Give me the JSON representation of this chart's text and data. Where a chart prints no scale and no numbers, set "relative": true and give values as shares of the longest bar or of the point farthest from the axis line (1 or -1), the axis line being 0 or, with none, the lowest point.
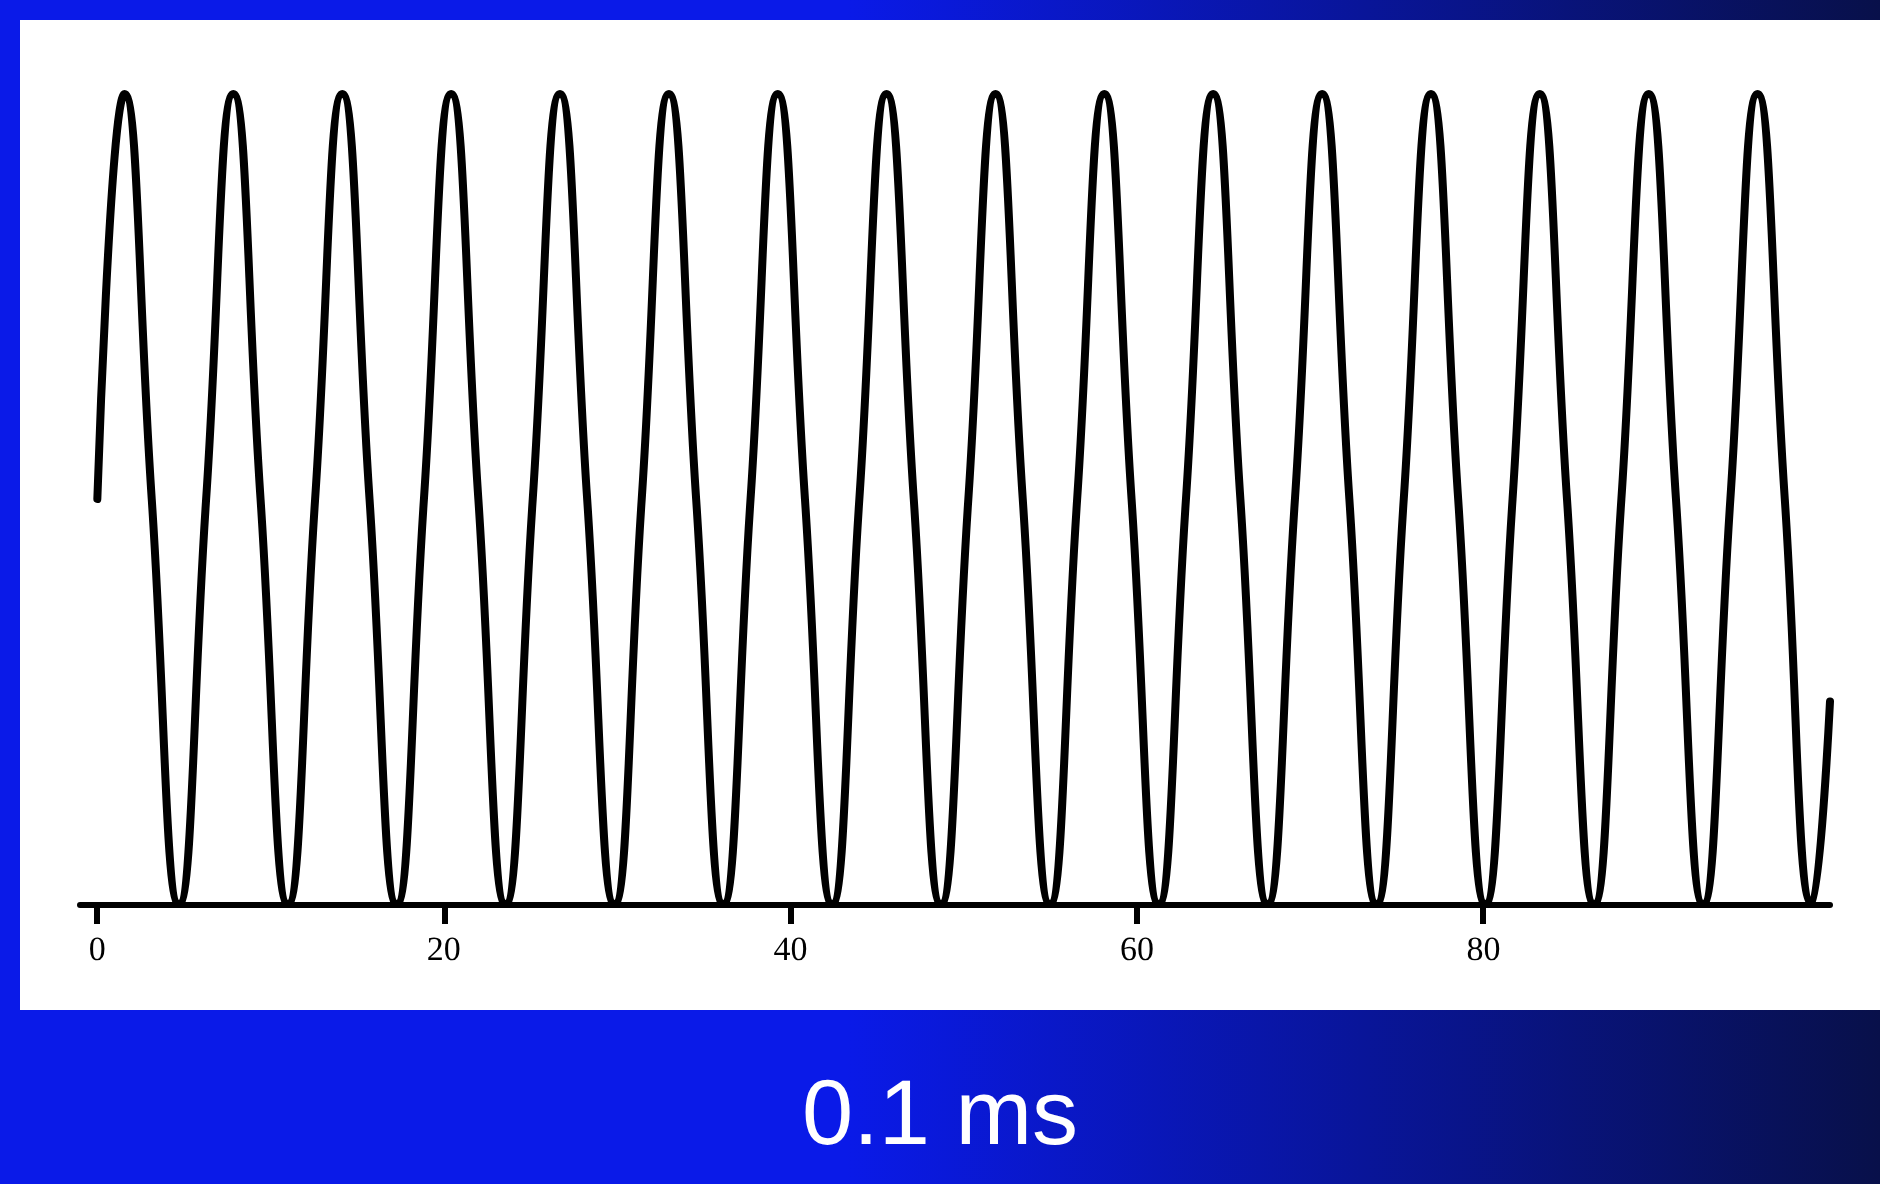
{
  "chart_data": {
    "type": "line",
    "title": "0.1 ms",
    "relative": true,
    "color": "#000000",
    "marker": "none",
    "line_style": "solid",
    "grid": false,
    "tick_labels": "x",
    "xlim": [
      -1,
      100
    ],
    "xticks": [
      0,
      20,
      40,
      60,
      80
    ],
    "x": [
      0,
      1.57,
      3.14,
      4.71,
      6.28,
      7.85,
      9.42,
      11.0,
      12.57,
      14.14,
      15.71,
      17.28,
      18.85,
      20.42,
      21.99,
      23.56,
      25.13,
      26.7,
      28.27,
      29.85,
      31.42,
      32.99,
      34.56,
      36.13,
      37.7,
      39.27,
      40.84,
      42.41,
      43.98,
      45.55,
      47.12,
      48.69,
      50.27,
      51.84,
      53.41,
      54.98,
      56.55,
      58.12,
      59.69,
      61.26,
      62.83,
      64.4,
      65.97,
      67.54,
      69.12,
      70.69,
      72.26,
      73.83,
      75.4,
      76.97,
      78.54,
      80.11,
      81.68,
      83.25,
      84.82,
      86.39,
      87.96,
      89.54,
      91.11,
      92.68,
      94.25,
      95.82,
      97.39,
      98.96,
      100
    ],
    "values": [
      0.5,
      1,
      0.5,
      0,
      0.5,
      1,
      0.5,
      0,
      0.5,
      1,
      0.5,
      0,
      0.5,
      1,
      0.5,
      0,
      0.5,
      1,
      0.5,
      0,
      0.5,
      1,
      0.5,
      0,
      0.5,
      1,
      0.5,
      0,
      0.5,
      1,
      0.5,
      0,
      0.5,
      1,
      0.5,
      0,
      0.5,
      1,
      0.5,
      0,
      0.5,
      1,
      0.5,
      0,
      0.5,
      1,
      0.5,
      0,
      0.5,
      1,
      0.5,
      0,
      0.5,
      1,
      0.5,
      0,
      0.5,
      1,
      0.5,
      0,
      0.5,
      1,
      0.5,
      0,
      0.25
    ]
  }
}
